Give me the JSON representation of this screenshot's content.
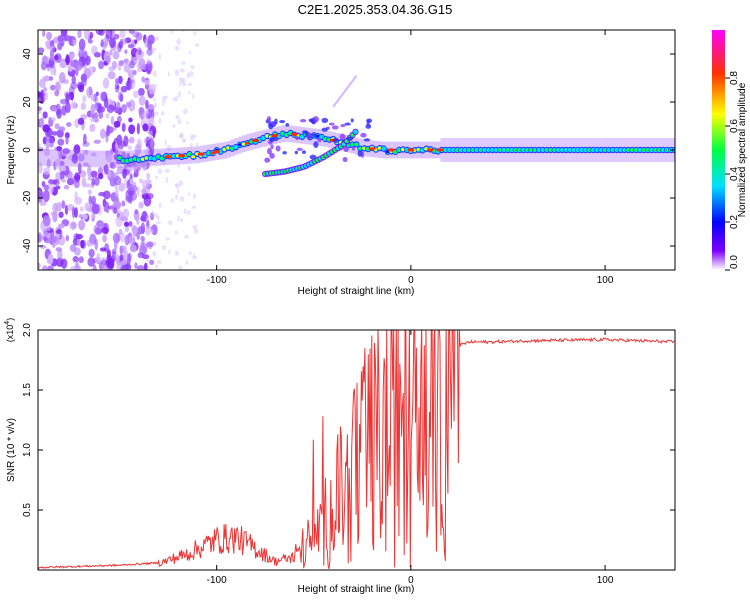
{
  "title": "C2E1.2025.353.04.36.G15",
  "chart_data": [
    {
      "type": "heatmap",
      "name": "spectrogram",
      "xlabel": "Height of straight line (km)",
      "ylabel": "Frequency (Hz)",
      "xlim": [
        -192,
        136
      ],
      "ylim": [
        -50,
        50
      ],
      "xticks": [
        -100,
        0,
        100
      ],
      "xtick_labels": [
        "-100",
        "0",
        "100"
      ],
      "yticks": [
        -40,
        -20,
        0,
        20,
        40
      ],
      "ytick_labels": [
        "-40",
        "-20",
        "0",
        "20",
        "40"
      ],
      "colorbar": {
        "label": "Normalized spectral amplitude",
        "range": [
          0,
          1
        ],
        "ticks": [
          0,
          0.2,
          0.4,
          0.6,
          0.8
        ],
        "tick_labels": [
          "0.0",
          "0.2",
          "0.4",
          "0.6",
          "0.8"
        ],
        "colors": [
          "#ffffff",
          "#7d00ff",
          "#0000ff",
          "#00e0ff",
          "#00ff40",
          "#ffff00",
          "#ff3000",
          "#ff00ff"
        ]
      },
      "main_trace": {
        "x": [
          -192,
          -150,
          -130,
          -110,
          -95,
          -85,
          -75,
          -65,
          -55,
          -45,
          -35,
          -25,
          -15,
          0,
          20,
          60,
          100,
          136
        ],
        "y": [
          -3,
          -4,
          -3,
          -2,
          0,
          3,
          5,
          7,
          6,
          5,
          3,
          1,
          0,
          0,
          0,
          0,
          0,
          0
        ]
      },
      "secondary_trace": {
        "x": [
          -75,
          -65,
          -55,
          -45,
          -35,
          -28
        ],
        "y": [
          -10,
          -9,
          -7,
          -3,
          2,
          8
        ]
      }
    },
    {
      "type": "line",
      "name": "snr",
      "xlabel": "Height of straight line (km)",
      "ylabel": "SNR (10 * v/v)",
      "y_multiplier": "(x10",
      "y_multiplier_exp": "4",
      "y_multiplier_close": ")",
      "xlim": [
        -192,
        136
      ],
      "ylim": [
        0,
        2.0
      ],
      "xticks": [
        -100,
        0,
        100
      ],
      "xtick_labels": [
        "-100",
        "0",
        "100"
      ],
      "yticks": [
        0.5,
        1.0,
        1.5,
        2.0
      ],
      "ytick_labels": [
        "0.5",
        "1.0",
        "1.5",
        "2.0"
      ],
      "color": "#ef3333",
      "envelope": {
        "x": [
          -192,
          -150,
          -130,
          -115,
          -100,
          -90,
          -80,
          -70,
          -60,
          -50,
          -40,
          -30,
          -25,
          -20,
          -15,
          -10,
          -5,
          0,
          5,
          10,
          15,
          20,
          25,
          30,
          40,
          60,
          100,
          136
        ],
        "y": [
          0.02,
          0.04,
          0.06,
          0.15,
          0.28,
          0.3,
          0.2,
          0.08,
          0.12,
          0.3,
          0.55,
          0.8,
          1.0,
          1.1,
          1.2,
          1.2,
          1.25,
          1.3,
          1.35,
          1.45,
          1.6,
          1.8,
          1.87,
          1.9,
          1.9,
          1.91,
          1.92,
          1.9
        ]
      }
    }
  ]
}
